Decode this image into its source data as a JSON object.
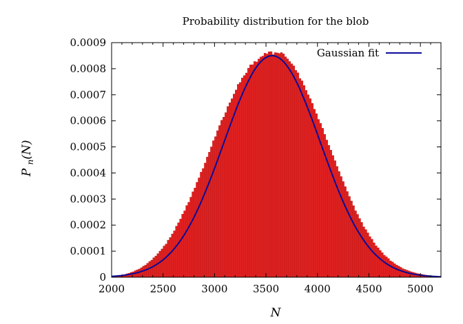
{
  "chart_data": {
    "type": "bar",
    "title": "Probability distribution for the blob",
    "xlabel": "N",
    "ylabel": "P_n(N)",
    "xlim": [
      2000,
      5200
    ],
    "ylim": [
      0,
      0.0009
    ],
    "xticks": [
      2000,
      2500,
      3000,
      3500,
      4000,
      4500,
      5000
    ],
    "yticks": [
      0,
      0.0001,
      0.0002,
      0.0003,
      0.0004,
      0.0005,
      0.0006,
      0.0007,
      0.0008,
      0.0009
    ],
    "xtick_labels": [
      "2000",
      "2500",
      "3000",
      "3500",
      "4000",
      "4500",
      "5000"
    ],
    "ytick_labels": [
      "0",
      "0.0001",
      "0.0002",
      "0.0003",
      "0.0004",
      "0.0005",
      "0.0006",
      "0.0007",
      "0.0008",
      "0.0009"
    ],
    "legend_position": "top-right",
    "bin_width": 20,
    "series": [
      {
        "kind": "histogram",
        "color": "#e02020",
        "bin_start": [
          2000,
          2020,
          2040,
          2060,
          2080,
          2100,
          2120,
          2140,
          2160,
          2180,
          2200,
          2220,
          2240,
          2260,
          2280,
          2300,
          2320,
          2340,
          2360,
          2380,
          2400,
          2420,
          2440,
          2460,
          2480,
          2500,
          2520,
          2540,
          2560,
          2580,
          2600,
          2620,
          2640,
          2660,
          2680,
          2700,
          2720,
          2740,
          2760,
          2780,
          2800,
          2820,
          2840,
          2860,
          2880,
          2900,
          2920,
          2940,
          2960,
          2980,
          3000,
          3020,
          3040,
          3060,
          3080,
          3100,
          3120,
          3140,
          3160,
          3180,
          3200,
          3220,
          3240,
          3260,
          3280,
          3300,
          3320,
          3340,
          3360,
          3380,
          3400,
          3420,
          3440,
          3460,
          3480,
          3500,
          3520,
          3540,
          3560,
          3580,
          3600,
          3620,
          3640,
          3660,
          3680,
          3700,
          3720,
          3740,
          3760,
          3780,
          3800,
          3820,
          3840,
          3860,
          3880,
          3900,
          3920,
          3940,
          3960,
          3980,
          4000,
          4020,
          4040,
          4060,
          4080,
          4100,
          4120,
          4140,
          4160,
          4180,
          4200,
          4220,
          4240,
          4260,
          4280,
          4300,
          4320,
          4340,
          4360,
          4380,
          4400,
          4420,
          4440,
          4460,
          4480,
          4500,
          4520,
          4540,
          4560,
          4580,
          4600,
          4620,
          4640,
          4660,
          4680,
          4700,
          4720,
          4740,
          4760,
          4780,
          4800,
          4820,
          4840,
          4860,
          4880,
          4900,
          4920,
          4940,
          4960,
          4980,
          5000,
          5020,
          5040,
          5060,
          5080,
          5100,
          5120,
          5140,
          5160,
          5180
        ],
        "values": [
          2.8e-06,
          3.7e-06,
          4.6e-06,
          6.3e-06,
          7.2e-06,
          9.5e-06,
          1.03e-05,
          1.32e-05,
          1.53e-05,
          1.86e-05,
          2.08e-05,
          2.51e-05,
          2.85e-05,
          3.17e-05,
          3.67e-05,
          4.25e-05,
          4.64e-05,
          5.34e-05,
          6.05e-05,
          6.59e-05,
          7.5e-05,
          8.15e-05,
          9.03e-05,
          0.0001003,
          0.0001085,
          0.00012,
          0.0001273,
          0.0001423,
          0.0001524,
          0.0001661,
          0.0001781,
          0.0001961,
          0.0002092,
          0.0002232,
          0.000242,
          0.0002548,
          0.000275,
          0.0002877,
          0.0003073,
          0.0003277,
          0.0003424,
          0.0003643,
          0.0003813,
          0.0004035,
          0.0004172,
          0.0004382,
          0.0004613,
          0.0004799,
          0.0005002,
          0.0005239,
          0.0005395,
          0.0005622,
          0.000582,
          0.0006021,
          0.0006142,
          0.0006317,
          0.0006552,
          0.0006695,
          0.000685,
          0.0007029,
          0.0007185,
          0.0007403,
          0.0007474,
          0.000765,
          0.0007739,
          0.0007837,
          0.0008022,
          0.000815,
          0.0008154,
          0.0008277,
          0.0008261,
          0.0008373,
          0.000845,
          0.0008485,
          0.0008596,
          0.0008565,
          0.0008651,
          0.0008656,
          0.000854,
          0.0008619,
          0.0008606,
          0.0008586,
          0.0008619,
          0.000857,
          0.0008458,
          0.0008379,
          0.0008277,
          0.0008189,
          0.0008112,
          0.0007938,
          0.0007843,
          0.0007627,
          0.0007537,
          0.0007359,
          0.0007168,
          0.0007002,
          0.0006852,
          0.0006673,
          0.0006449,
          0.0006275,
          0.0006056,
          0.0005905,
          0.0005717,
          0.0005482,
          0.0005265,
          0.000506,
          0.0004875,
          0.0004671,
          0.0004473,
          0.0004251,
          0.0004056,
          0.0003865,
          0.0003672,
          0.0003475,
          0.0003287,
          0.00031,
          0.0002926,
          0.0002747,
          0.0002549,
          0.0002413,
          0.0002254,
          0.0002104,
          0.0001933,
          0.0001828,
          0.0001703,
          0.0001558,
          0.0001461,
          0.0001321,
          0.0001204,
          0.0001129,
          0.0001031,
          9.42e-05,
          8.44e-05,
          7.86e-05,
          7.2e-05,
          6.29e-05,
          5.85e-05,
          5.18e-05,
          4.66e-05,
          4.25e-05,
          3.82e-05,
          3.29e-05,
          3.02e-05,
          2.73e-05,
          2.41e-05,
          2.1e-05,
          1.87e-05,
          1.67e-05,
          1.43e-05,
          1.26e-05,
          1.11e-05,
          9.7e-06,
          8.3e-06,
          7.2e-06,
          6.3e-06,
          5.5e-06
        ]
      },
      {
        "name": "Gaussian fit",
        "kind": "line",
        "color": "#0a0a9a",
        "mean": 3560,
        "sigma": 470,
        "amplitude": 0.00085
      }
    ]
  }
}
